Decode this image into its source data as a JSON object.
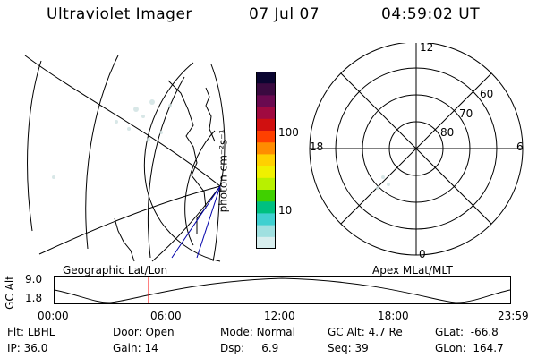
{
  "header": {
    "title": "Ultraviolet Imager",
    "date": "07 Jul 07",
    "time": "04:59:02 UT"
  },
  "colorbar": {
    "label": "photon cm⁻²s⁻¹",
    "ticks": [
      "100",
      "10"
    ],
    "colors": [
      "#0a0530",
      "#3a0a40",
      "#6a0a50",
      "#a00a40",
      "#d01010",
      "#ff4000",
      "#ff8c00",
      "#ffd000",
      "#f0f000",
      "#b8f000",
      "#40d000",
      "#00c080",
      "#40d0d0",
      "#a0e0e0",
      "#d8eeee"
    ]
  },
  "polar": {
    "mlt_labels": [
      "12",
      "6",
      "0",
      "18"
    ],
    "lat_labels": [
      "60",
      "70",
      "80"
    ]
  },
  "timeline": {
    "left_label": "Geographic Lat/Lon",
    "right_label": "Apex MLat/MLT",
    "y_axis_label": "GC Alt",
    "y_ticks": [
      "9.0",
      "1.8"
    ],
    "x_ticks": [
      "00:00",
      "06:00",
      "12:00",
      "18:00",
      "23:59"
    ],
    "marker_color": "#ff0000"
  },
  "status": {
    "row1": [
      {
        "label": "Flt:",
        "value": "LBHL"
      },
      {
        "label": "Door:",
        "value": "Open"
      },
      {
        "label": "Mode:",
        "value": "Normal"
      },
      {
        "label": "GC Alt:",
        "value": "4.7 Re"
      },
      {
        "label": "GLat:",
        "value": "-66.8"
      }
    ],
    "row2": [
      {
        "label": "IP:",
        "value": "36.0"
      },
      {
        "label": "Gain:",
        "value": "14"
      },
      {
        "label": "Dsp:",
        "value": "6.9"
      },
      {
        "label": "Seq:",
        "value": "39"
      },
      {
        "label": "GLon:",
        "value": "164.7"
      }
    ]
  }
}
